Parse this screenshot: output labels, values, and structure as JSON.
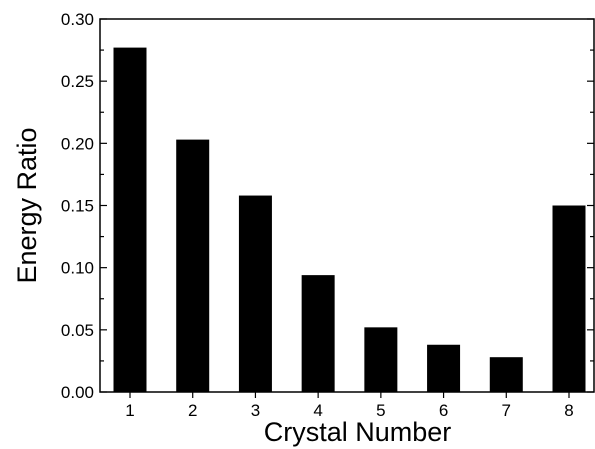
{
  "chart_data": {
    "type": "bar",
    "title": "",
    "xlabel": "Crystal Number",
    "ylabel": "Energy Ratio",
    "categories": [
      "1",
      "2",
      "3",
      "4",
      "5",
      "6",
      "7",
      "8"
    ],
    "values": [
      0.277,
      0.203,
      0.158,
      0.094,
      0.052,
      0.038,
      0.028,
      0.15
    ],
    "ylim": [
      0,
      0.3
    ],
    "yticks": [
      "0.00",
      "0.05",
      "0.10",
      "0.15",
      "0.20",
      "0.25",
      "0.30"
    ],
    "bar_color": "#000000",
    "grid": false,
    "legend": "none"
  }
}
